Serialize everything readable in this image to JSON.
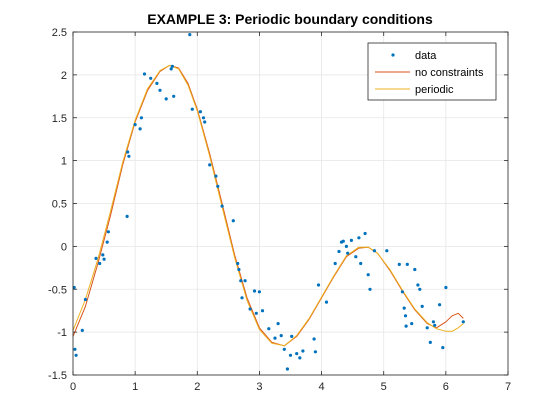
{
  "chart_data": {
    "type": "line",
    "title": "EXAMPLE 3: Periodic boundary conditions",
    "xlabel": "",
    "ylabel": "",
    "xlim": [
      0,
      7
    ],
    "ylim": [
      -1.5,
      2.5
    ],
    "xticks": [
      0,
      1,
      2,
      3,
      4,
      5,
      6,
      7
    ],
    "xtick_labels": [
      "0",
      "1",
      "2",
      "3",
      "4",
      "5",
      "6",
      "7"
    ],
    "yticks": [
      -1.5,
      -1,
      -0.5,
      0,
      0.5,
      1,
      1.5,
      2,
      2.5
    ],
    "ytick_labels": [
      "-1.5",
      "-1",
      "-0.5",
      "0",
      "0.5",
      "1",
      "1.5",
      "2",
      "2.5"
    ],
    "grid": true,
    "legend_position": "top-right",
    "series": [
      {
        "name": "data",
        "kind": "scatter",
        "color": "#0072BD",
        "points": [
          [
            0.02,
            -0.48
          ],
          [
            0.03,
            -1.2
          ],
          [
            0.05,
            -1.27
          ],
          [
            0.15,
            -0.98
          ],
          [
            0.2,
            -0.62
          ],
          [
            0.37,
            -0.14
          ],
          [
            0.43,
            -0.2
          ],
          [
            0.48,
            -0.1
          ],
          [
            0.5,
            -0.15
          ],
          [
            0.55,
            0.05
          ],
          [
            0.57,
            0.17
          ],
          [
            0.88,
            1.1
          ],
          [
            0.9,
            1.05
          ],
          [
            0.87,
            0.35
          ],
          [
            1.0,
            1.42
          ],
          [
            1.08,
            1.37
          ],
          [
            1.1,
            1.5
          ],
          [
            1.15,
            2.01
          ],
          [
            1.25,
            1.96
          ],
          [
            1.35,
            1.9
          ],
          [
            1.4,
            1.82
          ],
          [
            1.5,
            1.72
          ],
          [
            1.58,
            2.07
          ],
          [
            1.6,
            2.1
          ],
          [
            1.62,
            1.75
          ],
          [
            1.88,
            2.47
          ],
          [
            1.92,
            1.6
          ],
          [
            2.05,
            1.57
          ],
          [
            2.1,
            1.5
          ],
          [
            2.12,
            1.45
          ],
          [
            2.2,
            0.95
          ],
          [
            2.3,
            0.82
          ],
          [
            2.33,
            0.7
          ],
          [
            2.4,
            0.47
          ],
          [
            2.58,
            0.3
          ],
          [
            2.65,
            -0.2
          ],
          [
            2.67,
            -0.27
          ],
          [
            2.7,
            -0.4
          ],
          [
            2.72,
            -0.6
          ],
          [
            2.77,
            -0.4
          ],
          [
            2.85,
            -0.73
          ],
          [
            2.92,
            -0.52
          ],
          [
            2.95,
            -0.78
          ],
          [
            3.0,
            -0.53
          ],
          [
            3.05,
            -0.75
          ],
          [
            3.15,
            -0.96
          ],
          [
            3.25,
            -1.07
          ],
          [
            3.3,
            -0.9
          ],
          [
            3.35,
            -1.04
          ],
          [
            3.4,
            -1.2
          ],
          [
            3.45,
            -1.43
          ],
          [
            3.5,
            -1.27
          ],
          [
            3.52,
            -1.05
          ],
          [
            3.6,
            -1.25
          ],
          [
            3.65,
            -1.3
          ],
          [
            3.7,
            -1.22
          ],
          [
            3.88,
            -1.08
          ],
          [
            3.9,
            -1.23
          ],
          [
            3.95,
            -0.45
          ],
          [
            4.08,
            -0.65
          ],
          [
            4.22,
            -0.2
          ],
          [
            4.28,
            -0.06
          ],
          [
            4.32,
            0.05
          ],
          [
            4.35,
            0.06
          ],
          [
            4.4,
            0.0
          ],
          [
            4.42,
            -0.08
          ],
          [
            4.48,
            0.07
          ],
          [
            4.55,
            -0.12
          ],
          [
            4.6,
            0.1
          ],
          [
            4.63,
            -0.2
          ],
          [
            4.7,
            0.15
          ],
          [
            4.75,
            -0.33
          ],
          [
            4.78,
            -0.5
          ],
          [
            4.85,
            -0.05
          ],
          [
            5.05,
            -0.05
          ],
          [
            5.25,
            -0.21
          ],
          [
            5.3,
            -0.53
          ],
          [
            5.33,
            -0.72
          ],
          [
            5.35,
            -0.81
          ],
          [
            5.36,
            -0.93
          ],
          [
            5.38,
            -0.21
          ],
          [
            5.45,
            -0.9
          ],
          [
            5.5,
            -0.27
          ],
          [
            5.55,
            -0.45
          ],
          [
            5.58,
            -0.5
          ],
          [
            5.62,
            -0.7
          ],
          [
            5.7,
            -0.95
          ],
          [
            5.75,
            -1.12
          ],
          [
            5.8,
            -0.88
          ],
          [
            5.82,
            -0.92
          ],
          [
            5.9,
            -0.68
          ],
          [
            5.95,
            -1.18
          ],
          [
            6.0,
            -0.48
          ],
          [
            6.28,
            -0.88
          ]
        ]
      },
      {
        "name": "no constraints",
        "kind": "line",
        "color": "#D95319",
        "points": [
          [
            0.0,
            -1.05
          ],
          [
            0.2,
            -0.7
          ],
          [
            0.4,
            -0.2
          ],
          [
            0.6,
            0.35
          ],
          [
            0.8,
            0.95
          ],
          [
            1.0,
            1.45
          ],
          [
            1.2,
            1.82
          ],
          [
            1.4,
            2.04
          ],
          [
            1.55,
            2.11
          ],
          [
            1.7,
            2.08
          ],
          [
            1.85,
            1.9
          ],
          [
            2.0,
            1.6
          ],
          [
            2.2,
            1.08
          ],
          [
            2.4,
            0.5
          ],
          [
            2.6,
            -0.1
          ],
          [
            2.8,
            -0.6
          ],
          [
            3.0,
            -0.95
          ],
          [
            3.2,
            -1.12
          ],
          [
            3.4,
            -1.16
          ],
          [
            3.6,
            -1.05
          ],
          [
            3.8,
            -0.85
          ],
          [
            4.0,
            -0.6
          ],
          [
            4.2,
            -0.35
          ],
          [
            4.4,
            -0.12
          ],
          [
            4.6,
            -0.02
          ],
          [
            4.75,
            -0.01
          ],
          [
            4.9,
            -0.08
          ],
          [
            5.1,
            -0.28
          ],
          [
            5.3,
            -0.52
          ],
          [
            5.5,
            -0.74
          ],
          [
            5.7,
            -0.9
          ],
          [
            5.85,
            -0.95
          ],
          [
            6.0,
            -0.88
          ],
          [
            6.1,
            -0.81
          ],
          [
            6.2,
            -0.78
          ],
          [
            6.28,
            -0.84
          ]
        ]
      },
      {
        "name": "periodic",
        "kind": "line",
        "color": "#EDB120",
        "points": [
          [
            0.0,
            -0.98
          ],
          [
            0.2,
            -0.62
          ],
          [
            0.4,
            -0.15
          ],
          [
            0.6,
            0.4
          ],
          [
            0.8,
            0.98
          ],
          [
            1.0,
            1.47
          ],
          [
            1.2,
            1.84
          ],
          [
            1.4,
            2.05
          ],
          [
            1.55,
            2.11
          ],
          [
            1.7,
            2.07
          ],
          [
            1.85,
            1.88
          ],
          [
            2.0,
            1.58
          ],
          [
            2.2,
            1.05
          ],
          [
            2.4,
            0.46
          ],
          [
            2.6,
            -0.13
          ],
          [
            2.8,
            -0.63
          ],
          [
            3.0,
            -0.97
          ],
          [
            3.2,
            -1.13
          ],
          [
            3.4,
            -1.16
          ],
          [
            3.6,
            -1.04
          ],
          [
            3.8,
            -0.84
          ],
          [
            4.0,
            -0.59
          ],
          [
            4.2,
            -0.34
          ],
          [
            4.4,
            -0.11
          ],
          [
            4.6,
            -0.01
          ],
          [
            4.75,
            -0.01
          ],
          [
            4.9,
            -0.08
          ],
          [
            5.1,
            -0.27
          ],
          [
            5.3,
            -0.51
          ],
          [
            5.5,
            -0.73
          ],
          [
            5.7,
            -0.89
          ],
          [
            5.85,
            -0.96
          ],
          [
            6.0,
            -0.99
          ],
          [
            6.1,
            -0.99
          ],
          [
            6.2,
            -0.95
          ],
          [
            6.28,
            -0.9
          ]
        ]
      }
    ]
  }
}
